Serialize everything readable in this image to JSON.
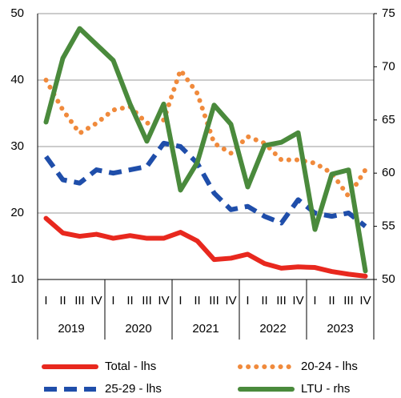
{
  "chart_data": {
    "type": "line",
    "categories": [
      "I",
      "II",
      "III",
      "IV",
      "I",
      "II",
      "III",
      "IV",
      "I",
      "II",
      "III",
      "IV",
      "I",
      "II",
      "III",
      "IV",
      "I",
      "II",
      "III",
      "IV"
    ],
    "groups": [
      "2019",
      "2020",
      "2021",
      "2022",
      "2023"
    ],
    "ylim": [
      10,
      50
    ],
    "yticks": [
      10,
      20,
      30,
      40,
      50
    ],
    "y2lim": [
      50,
      75
    ],
    "y2ticks": [
      50,
      55,
      60,
      65,
      70,
      75
    ],
    "grid": true,
    "series": [
      {
        "name": "Total - lhs",
        "color": "#e8281e",
        "line_style": "solid",
        "values": [
          19.2,
          17,
          16.5,
          16.8,
          16.2,
          16.6,
          16.2,
          16.2,
          17.1,
          15.8,
          13,
          13.2,
          13.8,
          12.4,
          11.7,
          11.9,
          11.8,
          11.2,
          10.8,
          10.5
        ]
      },
      {
        "name": "20-24 - lhs",
        "color": "#f08a3c",
        "line_style": "dotted",
        "values": [
          40,
          35.5,
          32,
          33.5,
          35.5,
          36,
          33.5,
          34,
          41.5,
          38,
          30.5,
          29,
          31.5,
          30.5,
          28,
          28,
          27.5,
          26,
          22.5,
          26.5
        ]
      },
      {
        "name": "25-29 - lhs",
        "color": "#1f4eaa",
        "line_style": "dashed",
        "values": [
          28.5,
          25,
          24.5,
          26.5,
          26,
          26.5,
          27,
          30.5,
          30,
          27.5,
          23,
          20.5,
          21,
          19.5,
          18.5,
          22,
          20,
          19.5,
          20,
          18
        ]
      },
      {
        "name": "LTU - rhs",
        "color": "#4a8a3c",
        "line_style": "solid",
        "axis": "y2",
        "values": [
          64.8,
          70.8,
          73.6,
          72.1,
          70.6,
          66.5,
          63,
          66.5,
          58.4,
          61,
          66.4,
          64.6,
          58.7,
          62.6,
          62.9,
          63.8,
          54.7,
          59.9,
          60.3,
          50.8
        ]
      }
    ]
  }
}
